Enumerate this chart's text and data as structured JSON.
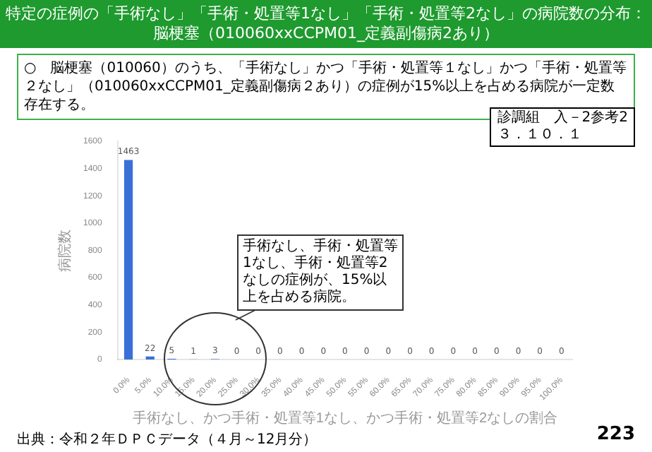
{
  "chart_data": {
    "type": "bar",
    "title": "特定の症例の「手術なし」「手術・処置等1なし」「手術・処置等2なし」の病院数の分布：",
    "subtitle": "脳梗塞（010060xxCCPM01_定義副傷病2あり）",
    "xlabel": "手術なし、かつ手術・処置等1なし、かつ手術・処置等2なしの割合",
    "ylabel": "病院数",
    "categories": [
      "0.0%",
      "5.0%",
      "10.0%",
      "15.0%",
      "20.0%",
      "25.0%",
      "30.0%",
      "35.0%",
      "40.0%",
      "45.0%",
      "50.0%",
      "55.0%",
      "60.0%",
      "65.0%",
      "70.0%",
      "75.0%",
      "80.0%",
      "85.0%",
      "90.0%",
      "95.0%",
      "100.0%"
    ],
    "values": [
      1463,
      22,
      5,
      1,
      3,
      0,
      0,
      0,
      0,
      0,
      0,
      0,
      0,
      0,
      0,
      0,
      0,
      0,
      0,
      0,
      0
    ],
    "color": "#3a6fd8",
    "ylim": [
      0,
      1600
    ],
    "yticks": [
      0,
      200,
      400,
      600,
      800,
      1000,
      1200,
      1400,
      1600
    ],
    "grid": false,
    "data_labels": true,
    "annotations": [
      "○　脳梗塞（010060）のうち、「手術なし」かつ「手術・処置等１なし」かつ「手術・処置等２なし」（010060xxCCPM01_定義副傷病２あり）の症例が15%以上を占める病院が一定数存在する。",
      "診調組　入－2参考2\n３．１０．１",
      "手術なし、手術・処置等1なし、手術・処置等2なしの症例が、15%以上を占める病院。",
      "出典：令和２年ＤＰＣデータ（４月～12月分）",
      "223"
    ]
  }
}
